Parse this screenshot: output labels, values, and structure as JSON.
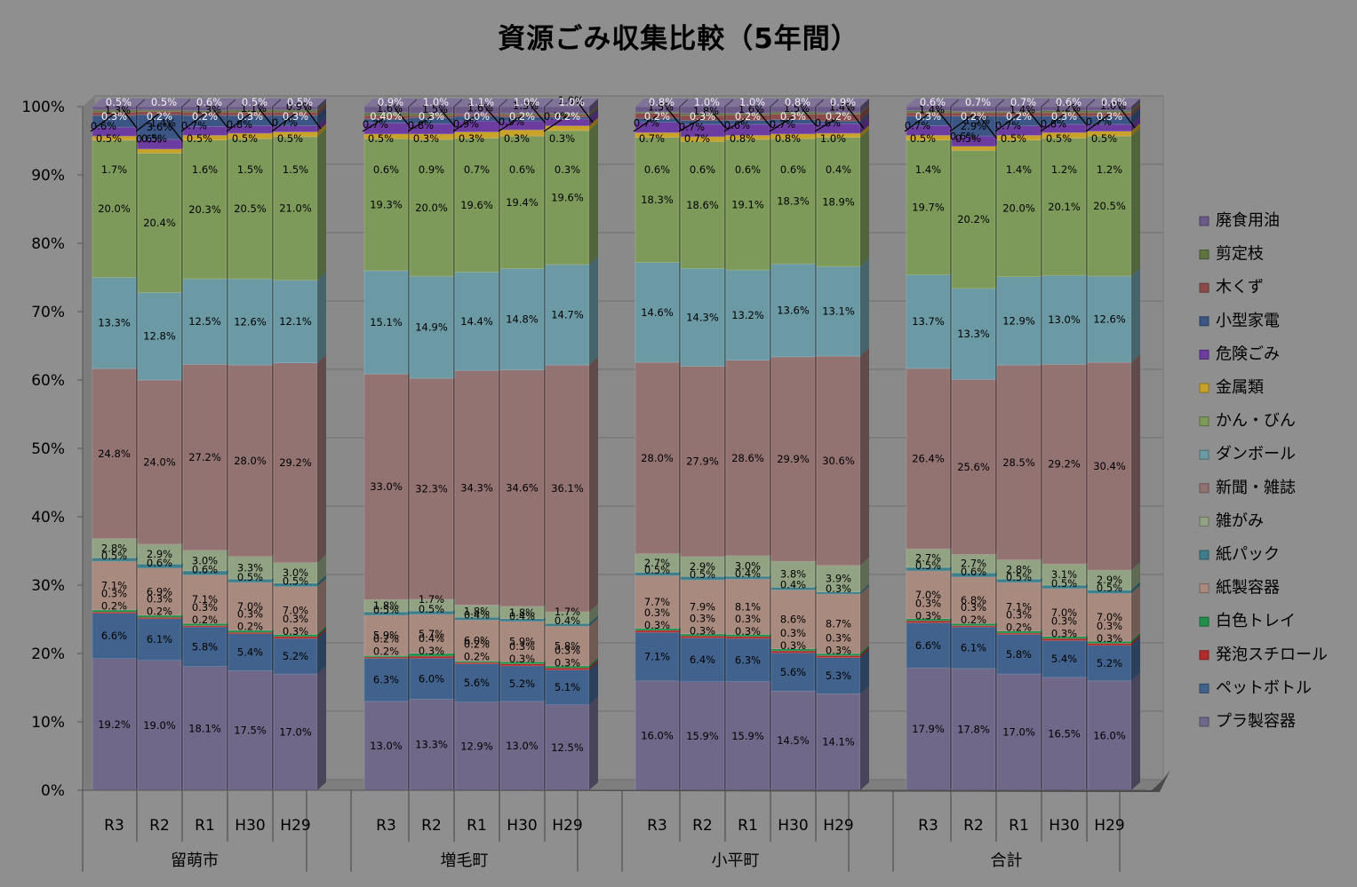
{
  "chart_data": {
    "type": "bar",
    "stacked": "percent",
    "title": "資源ごみ収集比較（5年間）",
    "yticks": [
      "0%",
      "10%",
      "20%",
      "30%",
      "40%",
      "50%",
      "60%",
      "70%",
      "80%",
      "90%",
      "100%"
    ],
    "ylim": [
      0,
      100
    ],
    "groups": [
      {
        "name": "留萌市",
        "categories": [
          "R3",
          "R2",
          "R1",
          "H30",
          "H29"
        ]
      },
      {
        "name": "増毛町",
        "categories": [
          "R3",
          "R2",
          "R1",
          "H30",
          "H29"
        ]
      },
      {
        "name": "小平町",
        "categories": [
          "R3",
          "R2",
          "R1",
          "H30",
          "H29"
        ]
      },
      {
        "name": "合計",
        "categories": [
          "R3",
          "R2",
          "R1",
          "H30",
          "H29"
        ]
      }
    ],
    "colors": {
      "プラ製容器": "#6f6889",
      "ペットボトル": "#41628c",
      "発泡スチロール": "#b22b2b",
      "白色トレイ": "#1f8f4a",
      "紙製容器": "#a98a7e",
      "紙パック": "#3d7e8a",
      "雑がみ": "#92a383",
      "新聞・雑誌": "#937272",
      "ダンボール": "#6b9aa5",
      "かん・びん": "#7e9a5a",
      "金属類": "#c9a22a",
      "危険ごみ": "#6d3ca0",
      "小型家電": "#3b5684",
      "木くず": "#8b4b4b",
      "剪定枝": "#5f7540",
      "廃食用油": "#6a5a85"
    },
    "legend": [
      "廃食用油",
      "剪定枝",
      "木くず",
      "小型家電",
      "危険ごみ",
      "金属類",
      "かん・びん",
      "ダンボール",
      "新聞・雑誌",
      "雑がみ",
      "紙パック",
      "紙製容器",
      "白色トレイ",
      "発泡スチロール",
      "ペットボトル",
      "プラ製容器"
    ],
    "series": [
      {
        "name": "プラ製容器",
        "values": [
          19.2,
          19.0,
          18.1,
          17.5,
          17.0,
          13.0,
          13.3,
          12.9,
          13.0,
          12.5,
          16.0,
          15.9,
          15.9,
          14.5,
          14.1,
          17.9,
          17.8,
          17.0,
          16.5,
          16.0
        ]
      },
      {
        "name": "ペットボトル",
        "values": [
          6.6,
          6.1,
          5.8,
          5.4,
          5.2,
          6.3,
          6.0,
          5.6,
          5.2,
          5.1,
          7.1,
          6.4,
          6.3,
          5.6,
          5.3,
          6.6,
          6.1,
          5.8,
          5.4,
          5.2
        ]
      },
      {
        "name": "発泡スチロール",
        "values": [
          0.2,
          0.2,
          0.2,
          0.2,
          0.3,
          0.2,
          0.3,
          0.2,
          0.3,
          0.3,
          0.3,
          0.3,
          0.3,
          0.3,
          0.3,
          0.3,
          0.2,
          0.2,
          0.3,
          0.3
        ]
      },
      {
        "name": "白色トレイ",
        "values": [
          0.3,
          0.3,
          0.3,
          0.3,
          0.3,
          0.2,
          0.4,
          0.2,
          0.3,
          0.3,
          0.3,
          0.3,
          0.3,
          0.3,
          0.3,
          0.3,
          0.3,
          0.3,
          0.3,
          0.3
        ]
      },
      {
        "name": "紙製容器",
        "values": [
          7.1,
          6.9,
          7.1,
          7.0,
          7.0,
          5.9,
          5.7,
          6.0,
          5.9,
          5.8,
          7.7,
          7.9,
          8.1,
          8.6,
          8.7,
          7.0,
          6.8,
          7.1,
          7.0,
          7.0
        ]
      },
      {
        "name": "紙パック",
        "values": [
          0.5,
          0.6,
          0.6,
          0.5,
          0.5,
          0.5,
          0.5,
          0.4,
          0.4,
          0.4,
          0.5,
          0.5,
          0.4,
          0.4,
          0.3,
          0.5,
          0.6,
          0.5,
          0.5,
          0.5
        ]
      },
      {
        "name": "雑がみ",
        "values": [
          2.8,
          2.9,
          3.0,
          3.3,
          3.0,
          1.8,
          1.7,
          1.8,
          1.8,
          1.7,
          2.7,
          2.9,
          3.0,
          3.8,
          3.9,
          2.7,
          2.7,
          2.8,
          3.1,
          2.9
        ]
      },
      {
        "name": "新聞・雑誌",
        "values": [
          24.8,
          24.0,
          27.2,
          28.0,
          29.2,
          33.0,
          32.3,
          34.3,
          34.6,
          36.1,
          28.0,
          27.9,
          28.6,
          29.9,
          30.6,
          26.4,
          25.6,
          28.5,
          29.2,
          30.4
        ]
      },
      {
        "name": "ダンボール",
        "values": [
          13.3,
          12.8,
          12.5,
          12.6,
          12.1,
          15.1,
          14.9,
          14.4,
          14.8,
          14.7,
          14.6,
          14.3,
          13.2,
          13.6,
          13.1,
          13.7,
          13.3,
          12.9,
          13.0,
          12.6
        ]
      },
      {
        "name": "かん・びん",
        "values": [
          20.0,
          20.4,
          20.3,
          20.5,
          21.0,
          19.3,
          20.0,
          19.6,
          19.4,
          19.6,
          18.3,
          18.6,
          19.1,
          18.3,
          18.9,
          19.7,
          20.2,
          20.0,
          20.1,
          20.5
        ]
      },
      {
        "name": "金属類",
        "values": [
          0.6,
          0.6,
          0.7,
          0.8,
          0.7,
          0.7,
          0.8,
          0.9,
          0.9,
          0.7,
          0.7,
          0.7,
          0.6,
          0.7,
          0.6,
          0.7,
          0.6,
          0.7,
          0.8,
          0.7
        ]
      },
      {
        "name": "危険ごみ",
        "values": [
          1.3,
          1.4,
          1.3,
          1.1,
          0.9,
          1.6,
          1.5,
          1.6,
          1.3,
          1.0,
          1.5,
          1.8,
          1.6,
          1.5,
          1.4,
          1.4,
          1.5,
          1.4,
          1.2,
          1.0
        ]
      },
      {
        "name": "小型家電",
        "values": [
          1.7,
          3.6,
          1.6,
          1.5,
          1.5,
          0.6,
          0.9,
          0.7,
          0.6,
          0.3,
          0.6,
          0.6,
          0.6,
          0.6,
          0.4,
          1.4,
          2.9,
          1.4,
          1.2,
          1.2
        ]
      },
      {
        "name": "木くず",
        "values": [
          0.5,
          0.5,
          0.5,
          0.5,
          0.5,
          0.5,
          0.3,
          0.3,
          0.3,
          0.3,
          0.7,
          0.7,
          0.8,
          0.8,
          1.0,
          0.5,
          0.5,
          0.5,
          0.5,
          0.5
        ]
      },
      {
        "name": "剪定枝",
        "values": [
          0.3,
          0.2,
          0.2,
          0.3,
          0.3,
          0.4,
          0.3,
          0.0,
          0.2,
          0.2,
          0.2,
          0.3,
          0.2,
          0.3,
          0.2,
          0.3,
          0.2,
          0.2,
          0.3,
          0.3
        ]
      },
      {
        "name": "廃食用油",
        "values": [
          0.5,
          0.5,
          0.6,
          0.5,
          0.5,
          0.9,
          1.0,
          1.1,
          1.0,
          1.0,
          0.8,
          1.0,
          1.0,
          0.8,
          0.9,
          0.6,
          0.7,
          0.7,
          0.6,
          0.6
        ]
      }
    ],
    "value_labels": [
      [
        "19.2%",
        "19.0%",
        "18.1%",
        "17.5%",
        "17.0%",
        "13.0%",
        "13.3%",
        "12.9%",
        "13.0%",
        "12.5%",
        "16.0%",
        "15.9%",
        "15.9%",
        "14.5%",
        "14.1%",
        "17.9%",
        "17.8%",
        "17.0%",
        "16.5%",
        "16.0%"
      ],
      [
        "6.6%",
        "6.1%",
        "5.8%",
        "5.4%",
        "5.2%",
        "6.3%",
        "6.0%",
        "5.6%",
        "5.2%",
        "5.1%",
        "7.1%",
        "6.4%",
        "6.3%",
        "5.6%",
        "5.3%",
        "6.6%",
        "6.1%",
        "5.8%",
        "5.4%",
        "5.2%"
      ],
      [
        "0.2%",
        "0.2%",
        "0.2%",
        "0.2%",
        "0.3%",
        "0.2%",
        "0.3%",
        "0.2%",
        "0.3%",
        "0.3%",
        "0.3%",
        "0.3%",
        "0.3%",
        "0.3%",
        "0.3%",
        "0.3%",
        "0.2%",
        "0.2%",
        "0.3%",
        "0.3%"
      ],
      [
        "0.3%",
        "0.3%",
        "0.3%",
        "0.3%",
        "0.3%",
        "0.2%",
        "0.4%",
        "0.2%",
        "0.3%",
        "0.3%",
        "0.3%",
        "0.3%",
        "0.3%",
        "0.3%",
        "0.3%",
        "0.3%",
        "0.3%",
        "0.3%",
        "0.3%",
        "0.3%"
      ],
      [
        "7.1%",
        "6.9%",
        "7.1%",
        "7.0%",
        "7.0%",
        "5.9%",
        "5.7%",
        "6.0%",
        "5.9%",
        "5.8%",
        "7.7%",
        "7.9%",
        "8.1%",
        "8.6%",
        "8.7%",
        "7.0%",
        "6.8%",
        "7.1%",
        "7.0%",
        "7.0%"
      ],
      [
        "0.5%",
        "0.6%",
        "0.6%",
        "0.5%",
        "0.5%",
        "0.5%",
        "0.5%",
        "0.4%",
        "0.4%",
        "0.4%",
        "0.5%",
        "0.5%",
        "0.4%",
        "0.4%",
        "0.3%",
        "0.5%",
        "0.6%",
        "0.5%",
        "0.5%",
        "0.5%"
      ],
      [
        "2.8%",
        "2.9%",
        "3.0%",
        "3.3%",
        "3.0%",
        "1.8%",
        "1.7%",
        "1.8%",
        "1.8%",
        "1.7%",
        "2.7%",
        "2.9%",
        "3.0%",
        "3.8%",
        "3.9%",
        "2.7%",
        "2.7%",
        "2.8%",
        "3.1%",
        "2.9%"
      ],
      [
        "24.8%",
        "24.0%",
        "27.2%",
        "28.0%",
        "29.2%",
        "33.0%",
        "32.3%",
        "34.3%",
        "34.6%",
        "36.1%",
        "28.0%",
        "27.9%",
        "28.6%",
        "29.9%",
        "30.6%",
        "26.4%",
        "25.6%",
        "28.5%",
        "29.2%",
        "30.4%"
      ],
      [
        "13.3%",
        "12.8%",
        "12.5%",
        "12.6%",
        "12.1%",
        "15.1%",
        "14.9%",
        "14.4%",
        "14.8%",
        "14.7%",
        "14.6%",
        "14.3%",
        "13.2%",
        "13.6%",
        "13.1%",
        "13.7%",
        "13.3%",
        "12.9%",
        "13.0%",
        "12.6%"
      ],
      [
        "20.0%",
        "20.4%",
        "20.3%",
        "20.5%",
        "21.0%",
        "19.3%",
        "20.0%",
        "19.6%",
        "19.4%",
        "19.6%",
        "18.3%",
        "18.6%",
        "19.1%",
        "18.3%",
        "18.9%",
        "19.7%",
        "20.2%",
        "20.0%",
        "20.1%",
        "20.5%"
      ],
      [
        "0.6%",
        "0.6%",
        "0.7%",
        "0.8%",
        "0.7%",
        "0.7%",
        "0.8%",
        "0.9%",
        "0.9%",
        "0.7%",
        "0.7%",
        "0.7%",
        "0.6%",
        "0.7%",
        "0.6%",
        "0.7%",
        "0.6%",
        "0.7%",
        "0.8%",
        "0.7%"
      ],
      [
        "1.3%",
        "1.4%",
        "1.3%",
        "1.1%",
        "0.9%",
        "1.6%",
        "1.5%",
        "1.6%",
        "1.3%",
        "1.0%",
        "1.5%",
        "1.8%",
        "1.6%",
        "1.5%",
        "1.4%",
        "1.4%",
        "1.5%",
        "1.4%",
        "1.2%",
        "1.0%"
      ],
      [
        "1.7%",
        "3.6%",
        "1.6%",
        "1.5%",
        "1.5%",
        "0.6%",
        "0.9%",
        "0.7%",
        "0.6%",
        "0.3%",
        "0.6%",
        "0.6%",
        "0.6%",
        "0.6%",
        "0.4%",
        "1.4%",
        "2.9%",
        "1.4%",
        "1.2%",
        "1.2%"
      ],
      [
        "0.5%",
        "0.5%",
        "0.5%",
        "0.5%",
        "0.5%",
        "0.5%",
        "0.3%",
        "0.3%",
        "0.3%",
        "0.3%",
        "0.7%",
        "0.7%",
        "0.8%",
        "0.8%",
        "1.0%",
        "0.5%",
        "0.5%",
        "0.5%",
        "0.5%",
        "0.5%"
      ],
      [
        "0.3%",
        "0.2%",
        "0.2%",
        "0.3%",
        "0.3%",
        "0.40%",
        "0.3%",
        "0.0%",
        "0.2%",
        "0.2%",
        "0.2%",
        "0.3%",
        "0.2%",
        "0.3%",
        "0.2%",
        "0.3%",
        "0.2%",
        "0.2%",
        "0.3%",
        "0.3%"
      ],
      [
        "0.5%",
        "0.5%",
        "0.6%",
        "0.5%",
        "0.5%",
        "0.9%",
        "1.0%",
        "1.1%",
        "1.0%",
        "1.0%",
        "0.8%",
        "1.0%",
        "1.0%",
        "0.8%",
        "0.9%",
        "0.6%",
        "0.7%",
        "0.7%",
        "0.6%",
        "0.6%"
      ]
    ]
  }
}
